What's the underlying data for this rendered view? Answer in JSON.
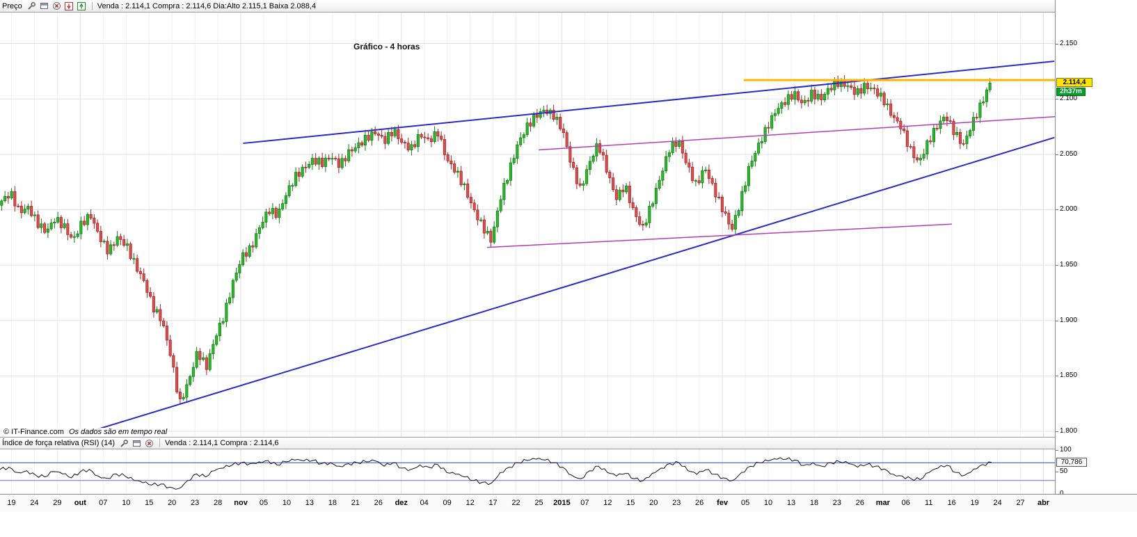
{
  "price_panel": {
    "label": "Preço",
    "quote": "Venda : 2.114,1 Compra : 2.114,6 Dia:Alto 2.115,1 Baixa 2.088,4",
    "title": "Gráfico - 4 horas",
    "copyright": "© IT-Finance.com",
    "copyright_note": "Os dados são em tempo real",
    "price_badge": "2.114,4",
    "time_badge": "2h37m"
  },
  "rsi_panel": {
    "label": "Índice de força relativa (RSI) (14)",
    "quote": "Venda : 2.114,1 Compra : 2.114,6",
    "value_badge": "70,786"
  },
  "chart_data": [
    {
      "type": "candlestick",
      "title": "Gráfico - 4 horas",
      "ylim": [
        1.795,
        2.178
      ],
      "y_ticks": [
        {
          "v": 2.15,
          "label": "2.150"
        },
        {
          "v": 2.1,
          "label": "2.100"
        },
        {
          "v": 2.05,
          "label": "2.050"
        },
        {
          "v": 2.0,
          "label": "2.000"
        },
        {
          "v": 1.95,
          "label": "1.950"
        },
        {
          "v": 1.9,
          "label": "1.900"
        },
        {
          "v": 1.85,
          "label": "1.850"
        },
        {
          "v": 1.8,
          "label": "1.800"
        }
      ],
      "x_span": [
        0.0,
        0.94
      ],
      "x_tick_labels": [
        "19",
        "24",
        "29",
        "out",
        "07",
        "10",
        "15",
        "20",
        "23",
        "28",
        "nov",
        "05",
        "10",
        "13",
        "18",
        "21",
        "26",
        "dez",
        "04",
        "09",
        "12",
        "17",
        "22",
        "25",
        "2015",
        "07",
        "12",
        "15",
        "20",
        "23",
        "26",
        "fev",
        "05",
        "10",
        "13",
        "18",
        "23",
        "26",
        "mar",
        "06",
        "11",
        "16",
        "19",
        "24",
        "27",
        "abr"
      ],
      "x_bold_indices": [
        3,
        10,
        17,
        24,
        31,
        38,
        45
      ],
      "close_anchors": [
        2.008,
        2.015,
        1.998,
        2.002,
        1.988,
        1.98,
        1.992,
        1.985,
        1.972,
        1.988,
        1.995,
        1.975,
        1.962,
        1.975,
        1.968,
        1.95,
        1.935,
        1.912,
        1.9,
        1.868,
        1.825,
        1.845,
        1.872,
        1.858,
        1.885,
        1.905,
        1.935,
        1.958,
        1.965,
        1.985,
        2.0,
        1.995,
        2.015,
        2.03,
        2.038,
        2.045,
        2.042,
        2.048,
        2.04,
        2.052,
        2.058,
        2.065,
        2.07,
        2.062,
        2.072,
        2.06,
        2.055,
        2.068,
        2.062,
        2.07,
        2.045,
        2.035,
        2.02,
        2.0,
        1.985,
        1.972,
        2.01,
        2.035,
        2.06,
        2.075,
        2.085,
        2.09,
        2.085,
        2.072,
        2.04,
        2.018,
        2.042,
        2.06,
        2.035,
        2.01,
        2.022,
        1.998,
        1.983,
        2.005,
        2.03,
        2.055,
        2.062,
        2.04,
        2.022,
        2.038,
        2.018,
        2.0,
        1.982,
        2.008,
        2.04,
        2.058,
        2.075,
        2.09,
        2.098,
        2.105,
        2.095,
        2.105,
        2.1,
        2.11,
        2.115,
        2.112,
        2.105,
        2.112,
        2.108,
        2.1,
        2.085,
        2.075,
        2.055,
        2.042,
        2.06,
        2.075,
        2.085,
        2.07,
        2.058,
        2.078,
        2.095,
        2.114
      ],
      "candle_count": 300,
      "noise_amp": 0.0035,
      "wick": 0.005,
      "last_price": 2.1144,
      "up_color": "#2eb82e",
      "up_border": "#0e7a0e",
      "down_color": "#d95050",
      "down_border": "#a32222",
      "trend_lines": [
        {
          "name": "support-lower-blue",
          "x1": 0.086,
          "p1": 1.8,
          "x2": 0.999,
          "p2": 2.065,
          "color": "#2a2ac8",
          "width": 2
        },
        {
          "name": "resistance-upper-blue",
          "x1": 0.231,
          "p1": 2.06,
          "x2": 0.999,
          "p2": 2.134,
          "color": "#2a2ac8",
          "width": 2
        },
        {
          "name": "channel-lower-purple",
          "x1": 0.462,
          "p1": 1.966,
          "x2": 0.902,
          "p2": 1.987,
          "color": "#b040b0",
          "width": 1.5
        },
        {
          "name": "channel-upper-purple",
          "x1": 0.511,
          "p1": 2.054,
          "x2": 1.0,
          "p2": 2.084,
          "color": "#b040b0",
          "width": 1.5
        },
        {
          "name": "horizontal-orange",
          "x1": 0.706,
          "p1": 2.117,
          "x2": 1.0,
          "p2": 2.117,
          "color": "#ffb400",
          "width": 3
        }
      ]
    },
    {
      "type": "line",
      "title": "Índice de força relativa (RSI) (14)",
      "ylim": [
        0,
        100
      ],
      "y_ticks": [
        {
          "v": 100,
          "label": "100"
        },
        {
          "v": 50,
          "label": "50"
        },
        {
          "v": 0,
          "label": "0"
        }
      ],
      "guides": [
        {
          "v": 70,
          "color": "#3c3cc8"
        },
        {
          "v": 30,
          "color": "#8060c0"
        }
      ],
      "values": [
        55,
        60,
        48,
        52,
        42,
        38,
        50,
        45,
        36,
        50,
        55,
        40,
        35,
        45,
        40,
        30,
        25,
        20,
        22,
        15,
        12,
        30,
        45,
        38,
        52,
        58,
        65,
        70,
        68,
        72,
        75,
        65,
        72,
        76,
        74,
        75,
        68,
        70,
        62,
        68,
        70,
        72,
        74,
        62,
        70,
        58,
        55,
        65,
        60,
        66,
        48,
        44,
        38,
        30,
        26,
        24,
        48,
        60,
        70,
        75,
        78,
        76,
        70,
        60,
        42,
        34,
        52,
        62,
        48,
        40,
        46,
        34,
        30,
        46,
        58,
        68,
        70,
        52,
        44,
        54,
        44,
        36,
        30,
        48,
        62,
        70,
        74,
        78,
        78,
        76,
        64,
        70,
        62,
        70,
        72,
        68,
        60,
        66,
        62,
        56,
        44,
        40,
        34,
        32,
        48,
        58,
        64,
        48,
        42,
        56,
        66,
        70.786
      ],
      "noise_amp": 4,
      "last_value": 70.786,
      "line_color": "#111111"
    }
  ]
}
